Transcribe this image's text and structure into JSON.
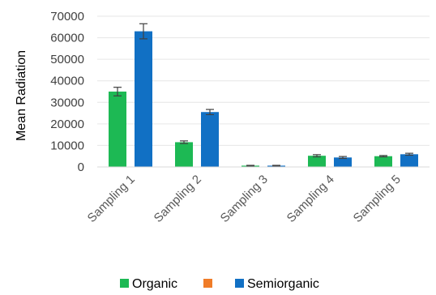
{
  "chart_data": {
    "type": "bar",
    "title": "",
    "xlabel": "",
    "ylabel": "Mean Radiation",
    "ylim": [
      0,
      70000
    ],
    "yticks": [
      0,
      10000,
      20000,
      30000,
      40000,
      50000,
      60000,
      70000
    ],
    "grid": true,
    "legend_position": "bottom",
    "categories": [
      "Sampling 1",
      "Sampling 2",
      "Sampling 3",
      "Sampling 4",
      "Sampling 5"
    ],
    "series": [
      {
        "name": "Organic",
        "color": "#1DB954",
        "values": [
          35000,
          11500,
          600,
          5200,
          5000
        ],
        "errors": [
          2000,
          600,
          150,
          500,
          300
        ]
      },
      {
        "name": "",
        "color": "#F07C28",
        "values": [
          0,
          0,
          0,
          0,
          0
        ],
        "errors": [
          0,
          0,
          0,
          0,
          0
        ]
      },
      {
        "name": "Semiorganic",
        "color": "#1170C4",
        "values": [
          63000,
          25500,
          600,
          4400,
          5900
        ],
        "errors": [
          3500,
          1200,
          150,
          450,
          450
        ]
      }
    ]
  }
}
